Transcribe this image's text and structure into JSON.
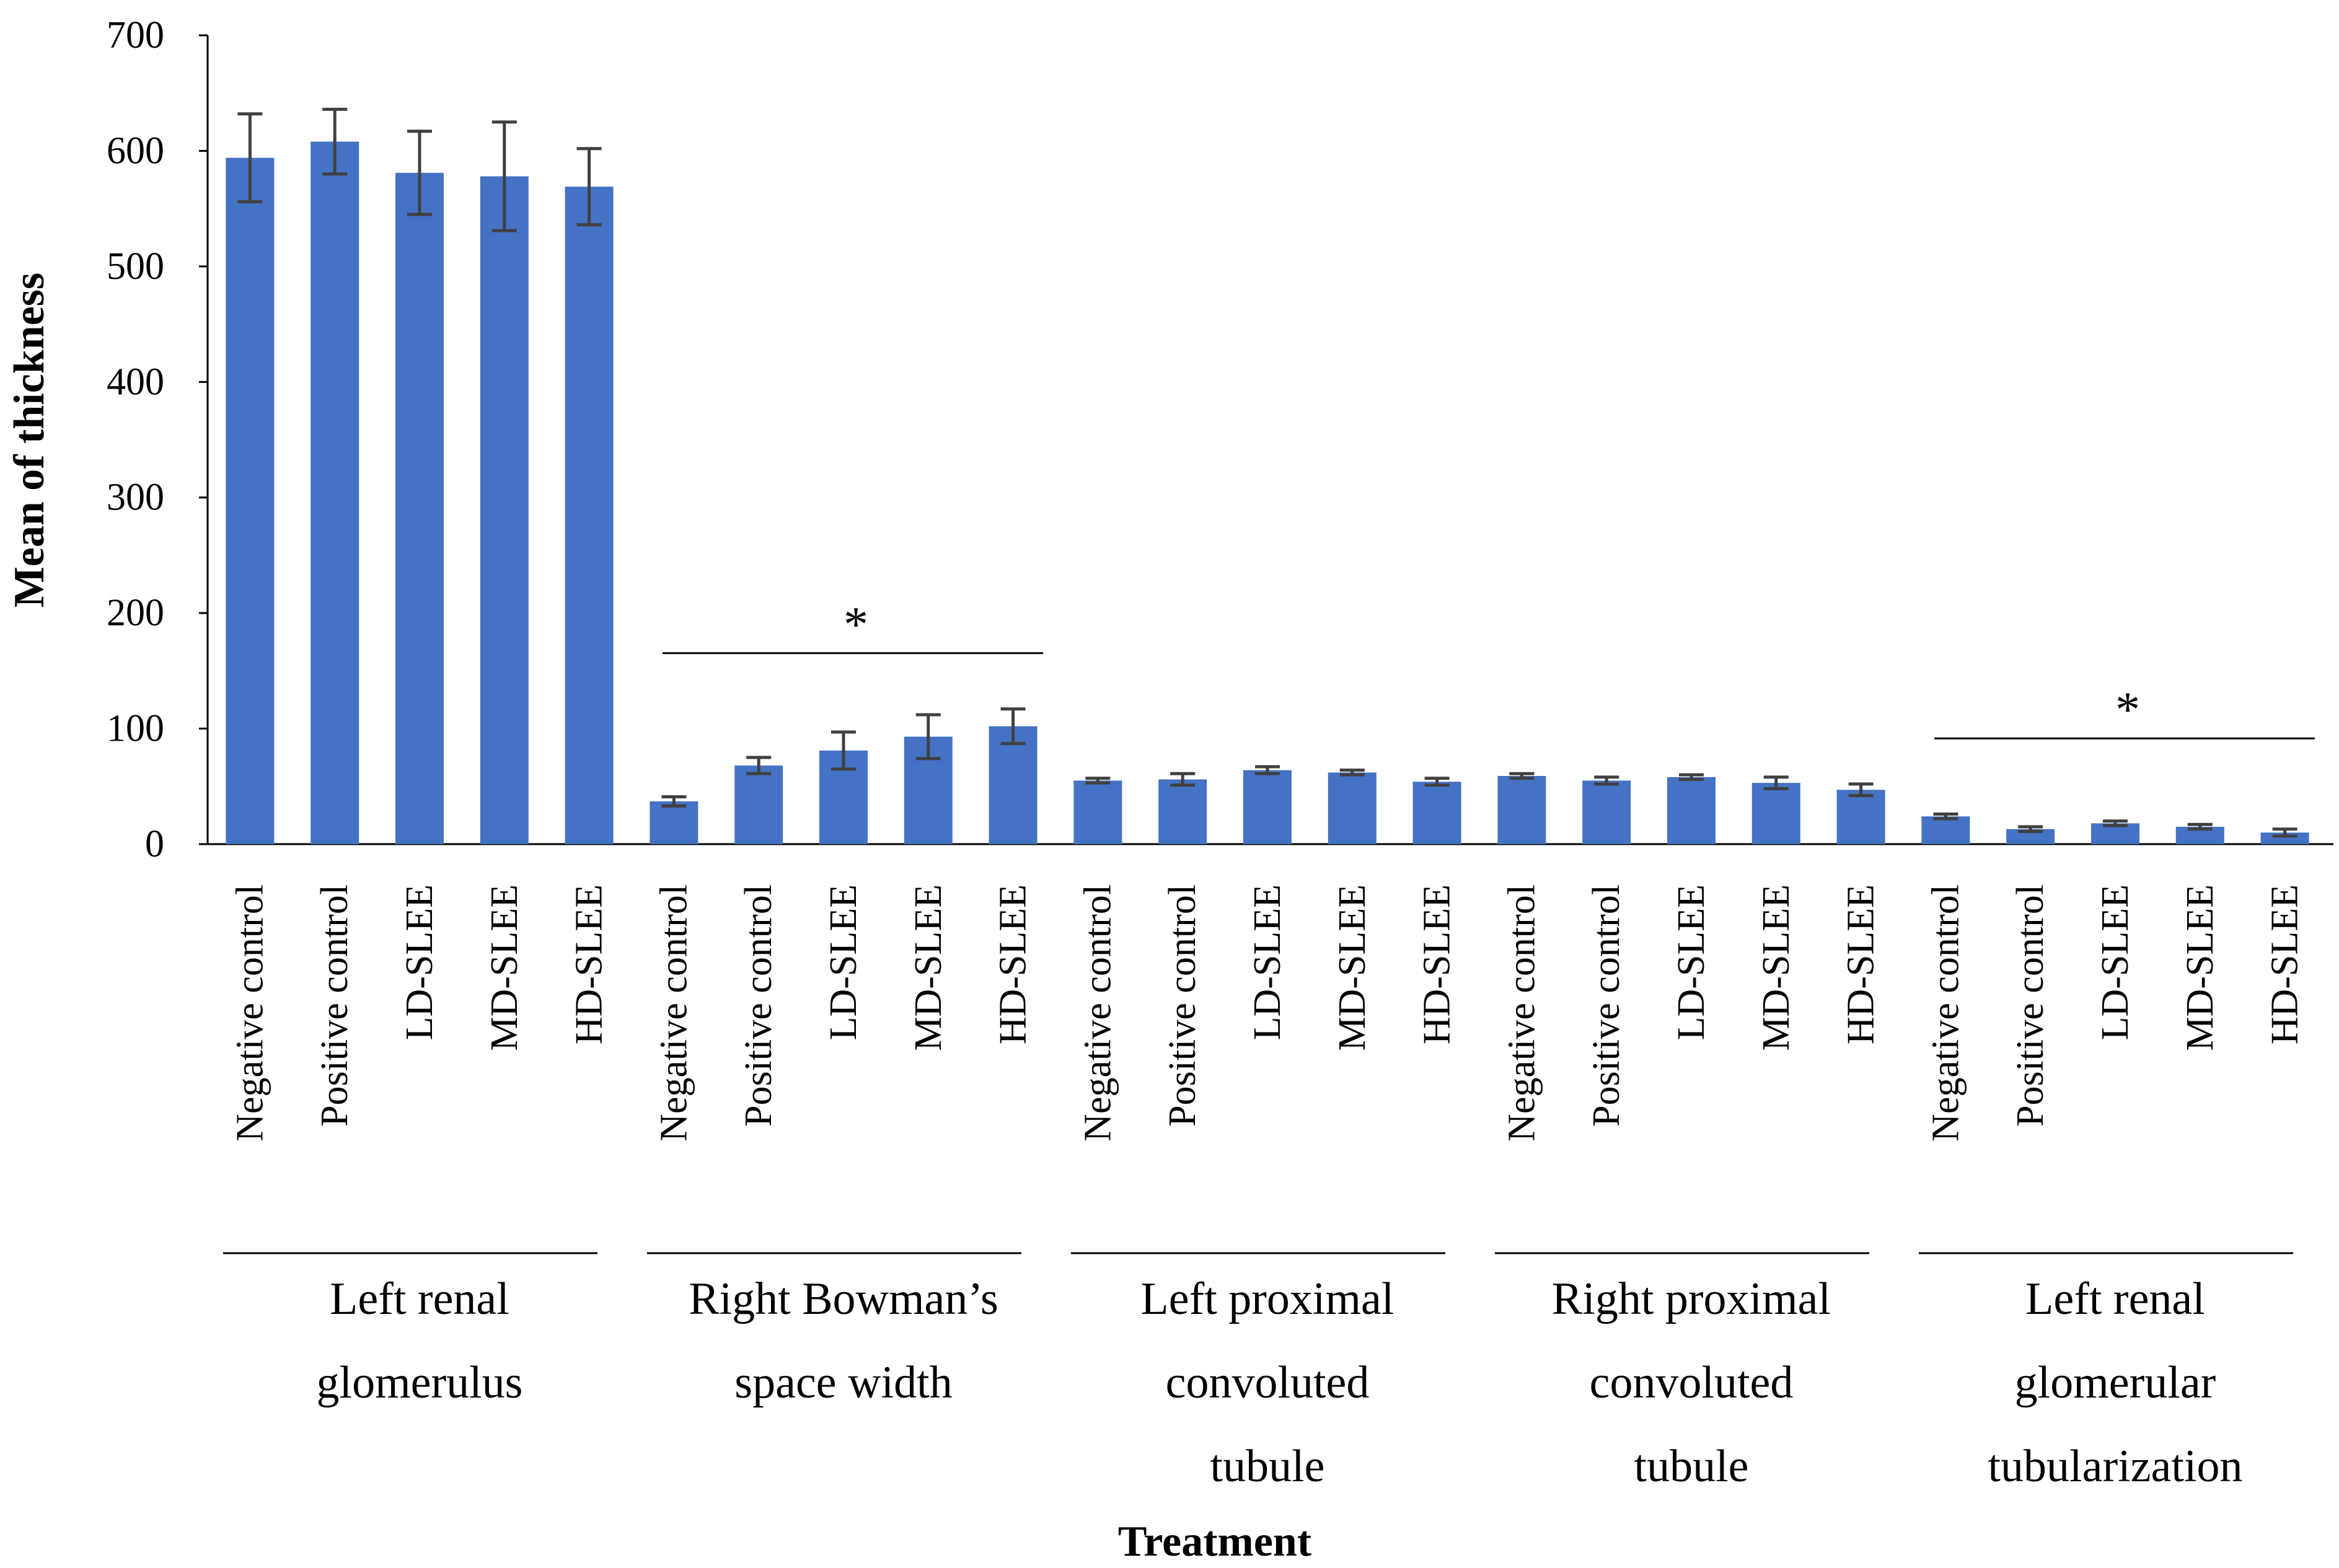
{
  "chart_data": {
    "type": "bar",
    "title": "",
    "xlabel": "Treatment",
    "ylabel": "Mean of thickness",
    "ylim": [
      0,
      700
    ],
    "yticks": [
      0,
      100,
      200,
      300,
      400,
      500,
      600,
      700
    ],
    "grid": false,
    "legend": "none",
    "bar_color": "#4472C4",
    "error_color": "#404040",
    "groups": [
      {
        "label": "Left renal glomerulus",
        "label_lines": [
          "Left renal",
          "glomerulus"
        ],
        "significance": "",
        "bars": [
          {
            "category": "Negative control",
            "value": 594,
            "error": 38
          },
          {
            "category": "Positive control",
            "value": 608,
            "error": 28
          },
          {
            "category": "LD-SLEE",
            "value": 581,
            "error": 36
          },
          {
            "category": "MD-SLEE",
            "value": 578,
            "error": 47
          },
          {
            "category": "HD-SLEE",
            "value": 569,
            "error": 33
          }
        ]
      },
      {
        "label": "Right Bowman’s space width",
        "label_lines": [
          "Right Bowman’s",
          "space width"
        ],
        "significance": "*",
        "bars": [
          {
            "category": "Negative control",
            "value": 37,
            "error": 4
          },
          {
            "category": "Positive control",
            "value": 68,
            "error": 7
          },
          {
            "category": "LD-SLEE",
            "value": 81,
            "error": 16
          },
          {
            "category": "MD-SLEE",
            "value": 93,
            "error": 19
          },
          {
            "category": "HD-SLEE",
            "value": 102,
            "error": 15
          }
        ]
      },
      {
        "label": "Left proximal convoluted tubule",
        "label_lines": [
          "Left proximal",
          "convoluted",
          "tubule"
        ],
        "significance": "",
        "bars": [
          {
            "category": "Negative control",
            "value": 55,
            "error": 2
          },
          {
            "category": "Positive control",
            "value": 56,
            "error": 5
          },
          {
            "category": "LD-SLEE",
            "value": 64,
            "error": 3
          },
          {
            "category": "MD-SLEE",
            "value": 62,
            "error": 2
          },
          {
            "category": "HD-SLEE",
            "value": 54,
            "error": 3
          }
        ]
      },
      {
        "label": "Right proximal convoluted tubule",
        "label_lines": [
          "Right proximal",
          "convoluted",
          "tubule"
        ],
        "significance": "",
        "bars": [
          {
            "category": "Negative control",
            "value": 59,
            "error": 2
          },
          {
            "category": "Positive control",
            "value": 55,
            "error": 3
          },
          {
            "category": "LD-SLEE",
            "value": 58,
            "error": 2
          },
          {
            "category": "MD-SLEE",
            "value": 53,
            "error": 5
          },
          {
            "category": "HD-SLEE",
            "value": 47,
            "error": 5
          }
        ]
      },
      {
        "label": "Left renal glomerular tubularization",
        "label_lines": [
          "Left renal",
          "glomerular",
          "tubularization"
        ],
        "significance": "*",
        "bars": [
          {
            "category": "Negative control",
            "value": 24,
            "error": 2
          },
          {
            "category": "Positive control",
            "value": 13,
            "error": 2
          },
          {
            "category": "LD-SLEE",
            "value": 18,
            "error": 2
          },
          {
            "category": "MD-SLEE",
            "value": 15,
            "error": 2
          },
          {
            "category": "HD-SLEE",
            "value": 10,
            "error": 3
          }
        ]
      }
    ]
  }
}
